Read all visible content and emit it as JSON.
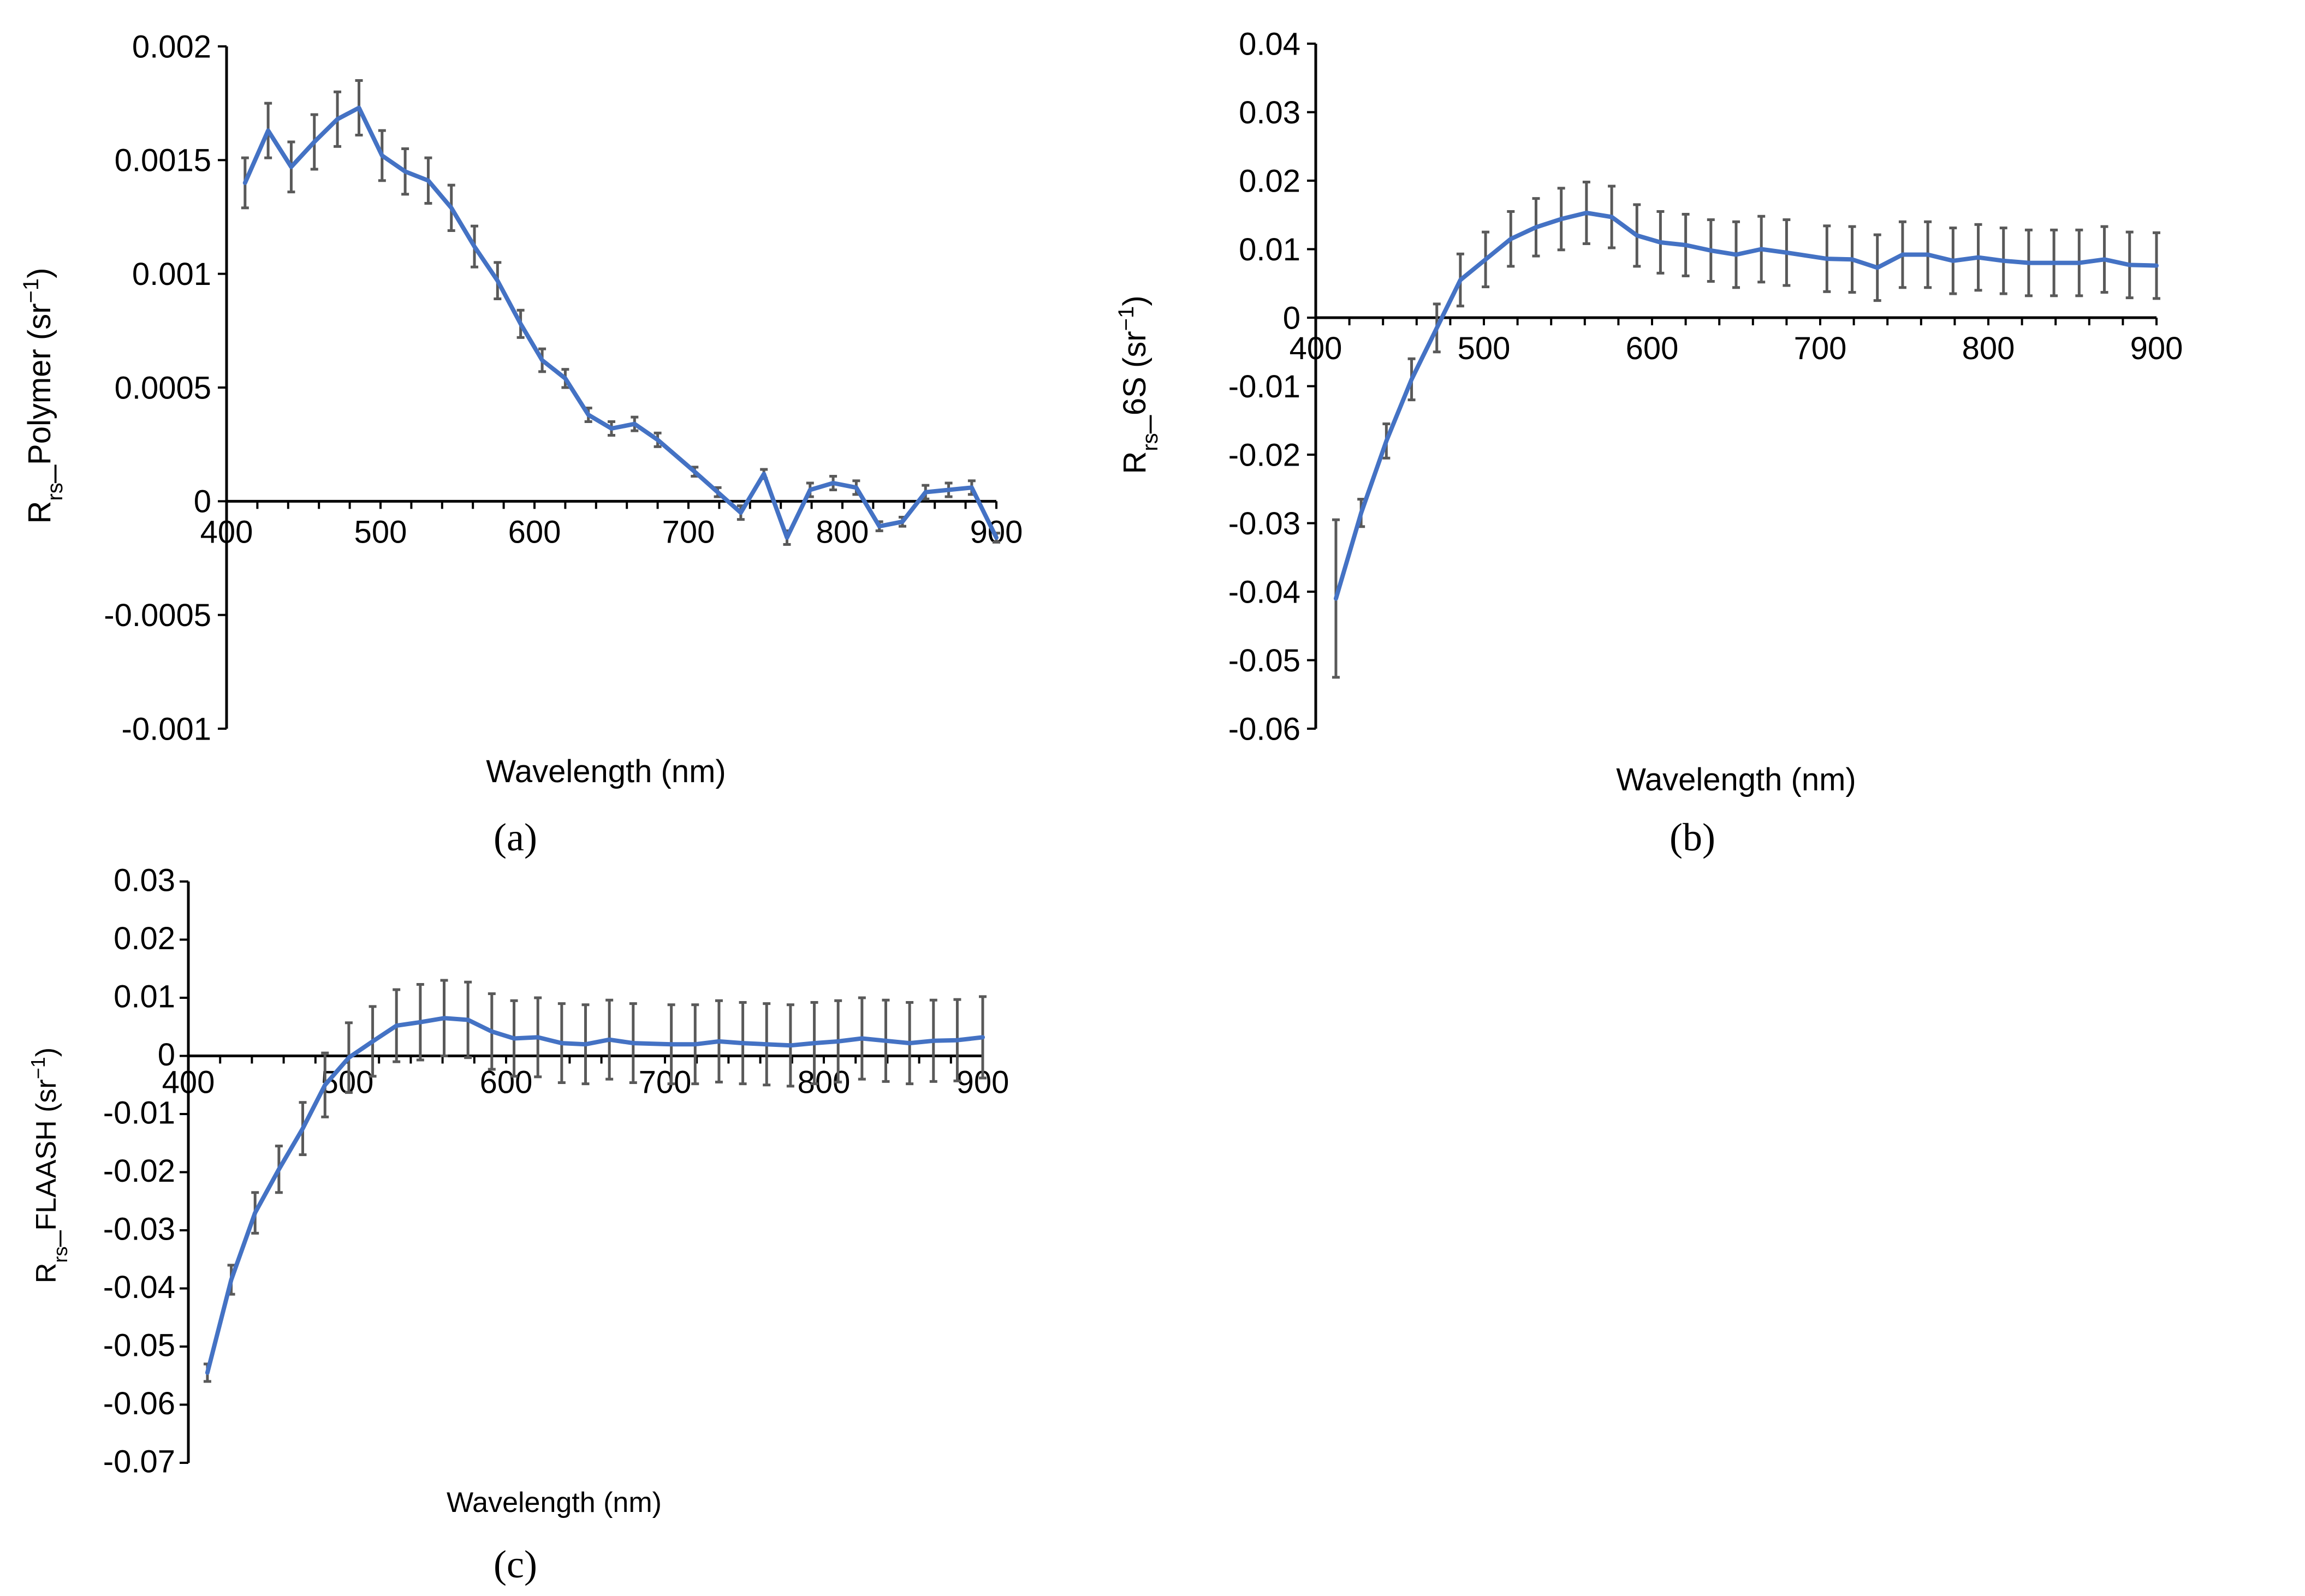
{
  "chart_data": [
    {
      "id": "a",
      "type": "line",
      "panel_label": "(a)",
      "xlabel": "Wavelength (nm)",
      "ylabel": {
        "main": "R",
        "sub": "rs",
        "rest": "_Polymer (sr",
        "sup": "−1",
        "close": ")"
      },
      "xlim": [
        400,
        900
      ],
      "ylim": [
        -0.001,
        0.002
      ],
      "xticks": [
        400,
        500,
        600,
        700,
        800,
        900
      ],
      "xtick_labels": [
        "400",
        "500",
        "600",
        "700",
        "800",
        "900"
      ],
      "yticks": [
        -0.001,
        -0.0005,
        0,
        0.0005,
        0.001,
        0.0015,
        0.002
      ],
      "ytick_labels": [
        "-0.001",
        "-0.0005",
        "0",
        "0.0005",
        "0.001",
        "0.0015",
        "0.002"
      ],
      "x_axis_at": 0,
      "series": [
        {
          "name": "Rrs_Polymer",
          "color": "#4472c4",
          "x": [
            412,
            427,
            442,
            457,
            472,
            486,
            501,
            516,
            531,
            546,
            561,
            576,
            591,
            605,
            620,
            635,
            650,
            665,
            680,
            704,
            719,
            734,
            749,
            764,
            779,
            794,
            809,
            824,
            839,
            854,
            869,
            884,
            900
          ],
          "y": [
            0.0014,
            0.00163,
            0.00147,
            0.00158,
            0.00168,
            0.00173,
            0.00152,
            0.00145,
            0.00141,
            0.00129,
            0.00112,
            0.00097,
            0.00078,
            0.00062,
            0.00054,
            0.00038,
            0.00032,
            0.00034,
            0.00027,
            0.00013,
            4e-05,
            -5e-05,
            0.00012,
            -0.00016,
            5e-05,
            8e-05,
            6e-05,
            -0.00011,
            -9e-05,
            4e-05,
            5e-05,
            6e-05,
            -0.00016
          ],
          "err": [
            0.00011,
            0.00012,
            0.00011,
            0.00012,
            0.00012,
            0.00012,
            0.00011,
            0.0001,
            0.0001,
            0.0001,
            9e-05,
            8e-05,
            6e-05,
            5e-05,
            4e-05,
            3e-05,
            3e-05,
            3e-05,
            3e-05,
            2e-05,
            2e-05,
            3e-05,
            2e-05,
            3e-05,
            3e-05,
            3e-05,
            3e-05,
            2e-05,
            2e-05,
            3e-05,
            3e-05,
            3e-05,
            2e-05
          ]
        }
      ]
    },
    {
      "id": "b",
      "type": "line",
      "panel_label": "(b)",
      "xlabel": "Wavelength (nm)",
      "ylabel": {
        "main": "R",
        "sub": "rs",
        "rest": "_6S (sr",
        "sup": "−1",
        "close": ")"
      },
      "xlim": [
        400,
        900
      ],
      "ylim": [
        -0.06,
        0.04
      ],
      "xticks": [
        400,
        500,
        600,
        700,
        800,
        900
      ],
      "xtick_labels": [
        "400",
        "500",
        "600",
        "700",
        "800",
        "900"
      ],
      "yticks": [
        -0.06,
        -0.05,
        -0.04,
        -0.03,
        -0.02,
        -0.01,
        0,
        0.01,
        0.02,
        0.03,
        0.04
      ],
      "ytick_labels": [
        "-0.06",
        "-0.05",
        "-0.04",
        "-0.03",
        "-0.02",
        "-0.01",
        "0",
        "0.01",
        "0.02",
        "0.03",
        "0.04"
      ],
      "x_axis_at": 0,
      "series": [
        {
          "name": "Rrs_6S",
          "color": "#4472c4",
          "x": [
            412,
            427,
            442,
            457,
            472,
            486,
            501,
            516,
            531,
            546,
            561,
            576,
            591,
            605,
            620,
            635,
            650,
            665,
            680,
            704,
            719,
            734,
            749,
            764,
            779,
            794,
            809,
            824,
            839,
            854,
            869,
            884,
            900
          ],
          "y": [
            -0.041,
            -0.0285,
            -0.018,
            -0.009,
            -0.0015,
            0.0055,
            0.0085,
            0.0115,
            0.0132,
            0.0144,
            0.0153,
            0.0147,
            0.012,
            0.011,
            0.0106,
            0.0098,
            0.0092,
            0.01,
            0.0095,
            0.0086,
            0.0085,
            0.0073,
            0.0092,
            0.0092,
            0.0083,
            0.0088,
            0.0083,
            0.008,
            0.008,
            0.008,
            0.0085,
            0.0077,
            0.0076
          ],
          "err": [
            0.0115,
            0.002,
            0.0025,
            0.003,
            0.0035,
            0.0038,
            0.004,
            0.004,
            0.0042,
            0.0045,
            0.0045,
            0.0045,
            0.0045,
            0.0045,
            0.0045,
            0.0045,
            0.0048,
            0.0048,
            0.0048,
            0.0048,
            0.0048,
            0.0048,
            0.0048,
            0.0048,
            0.0048,
            0.0048,
            0.0048,
            0.0048,
            0.0048,
            0.0048,
            0.0048,
            0.0048,
            0.0048
          ]
        }
      ]
    },
    {
      "id": "c",
      "type": "line",
      "panel_label": "(c)",
      "xlabel": "Wavelength (nm)",
      "ylabel": {
        "main": "R",
        "sub": "rs",
        "rest": "_FLAASH (sr",
        "sup": "−1",
        "close": ")"
      },
      "xlim": [
        400,
        900
      ],
      "ylim": [
        -0.07,
        0.03
      ],
      "xticks": [
        400,
        500,
        600,
        700,
        800,
        900
      ],
      "xtick_labels": [
        "400",
        "500",
        "600",
        "700",
        "800",
        "900"
      ],
      "yticks": [
        -0.07,
        -0.06,
        -0.05,
        -0.04,
        -0.03,
        -0.02,
        -0.01,
        0,
        0.01,
        0.02,
        0.03
      ],
      "ytick_labels": [
        "-0.07",
        "-0.06",
        "-0.05",
        "-0.04",
        "-0.03",
        "-0.02",
        "-0.01",
        "0",
        "0.01",
        "0.02",
        "0.03"
      ],
      "x_axis_at": 0,
      "series": [
        {
          "name": "Rrs_FLAASH",
          "color": "#4472c4",
          "x": [
            412,
            427,
            442,
            457,
            472,
            486,
            501,
            516,
            531,
            546,
            561,
            576,
            591,
            605,
            620,
            635,
            650,
            665,
            680,
            704,
            719,
            734,
            749,
            764,
            779,
            794,
            809,
            824,
            839,
            854,
            869,
            884,
            900
          ],
          "y": [
            -0.0545,
            -0.0385,
            -0.027,
            -0.0195,
            -0.0125,
            -0.005,
            -0.0003,
            0.0025,
            0.0052,
            0.0058,
            0.0065,
            0.0062,
            0.0042,
            0.003,
            0.0032,
            0.0022,
            0.002,
            0.0028,
            0.0022,
            0.002,
            0.002,
            0.0025,
            0.0022,
            0.002,
            0.0018,
            0.0022,
            0.0025,
            0.003,
            0.0026,
            0.0022,
            0.0026,
            0.0027,
            0.0032
          ],
          "err": [
            0.0015,
            0.0025,
            0.0035,
            0.004,
            0.0045,
            0.0055,
            0.006,
            0.006,
            0.0062,
            0.0065,
            0.0065,
            0.0065,
            0.0065,
            0.0065,
            0.0068,
            0.0068,
            0.0068,
            0.0068,
            0.0068,
            0.0068,
            0.0068,
            0.007,
            0.007,
            0.007,
            0.007,
            0.007,
            0.007,
            0.007,
            0.007,
            0.007,
            0.007,
            0.007,
            0.007
          ]
        }
      ]
    }
  ]
}
